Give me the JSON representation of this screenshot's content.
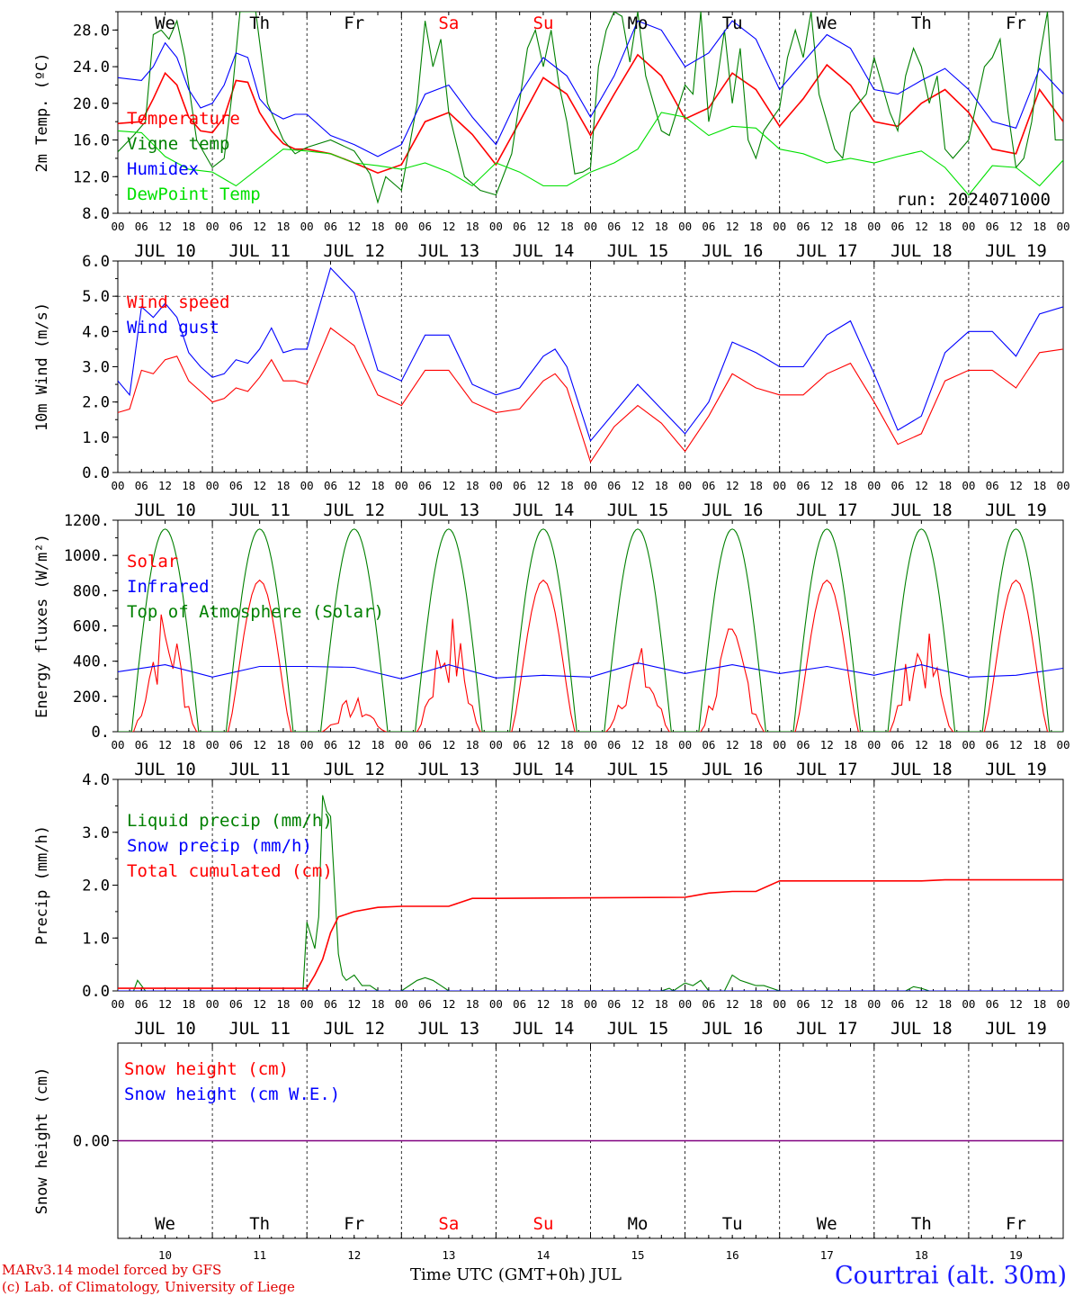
{
  "run_label": "run: 2024071000",
  "credits": [
    "MARv3.14 model forced by GFS",
    "(c) Lab. of Climatology, University of Liege"
  ],
  "station_label": "Courtrai (alt. 30m)",
  "x_axis_title": "Time UTC (GMT+0h) JUL",
  "hour_ticks": [
    "00",
    "06",
    "12",
    "18"
  ],
  "end_tick": "00",
  "date_labels": [
    "JUL 10",
    "JUL 11",
    "JUL 12",
    "JUL 13",
    "JUL 14",
    "JUL 15",
    "JUL 16",
    "JUL 17",
    "JUL 18",
    "JUL 19"
  ],
  "weekdays": [
    "We",
    "Th",
    "Fr",
    "Sa",
    "Su",
    "Mo",
    "Tu",
    "We",
    "Th",
    "Fr"
  ],
  "weekend_days": [
    3,
    4
  ],
  "day_numbers": [
    "10",
    "11",
    "12",
    "13",
    "14",
    "15",
    "16",
    "17",
    "18",
    "19"
  ],
  "colors": {
    "red": "#ff0000",
    "green": "#008000",
    "blue": "#0000ff",
    "lime": "#00e000",
    "purple": "#800080",
    "label": "#1a1aff"
  },
  "chart_data": [
    {
      "type": "line",
      "ylabel": "2m Temp. (ºC)",
      "ylim": [
        8,
        30
      ],
      "yticks": [
        "8.0",
        "12.0",
        "16.0",
        "20.0",
        "24.0",
        "28.0"
      ],
      "x_unit": "hours since JUL 10 00 UTC",
      "series": [
        {
          "name": "Temperature",
          "color": "#ff0000",
          "x": [
            0,
            6,
            9,
            12,
            15,
            18,
            21,
            24,
            27,
            30,
            33,
            36,
            39,
            42,
            45,
            48,
            54,
            60,
            66,
            72,
            78,
            84,
            90,
            96,
            102,
            108,
            114,
            120,
            126,
            132,
            138,
            144,
            150,
            156,
            162,
            168,
            174,
            180,
            186,
            192,
            198,
            204,
            210,
            216,
            222,
            228,
            234,
            240
          ],
          "y": [
            17.8,
            18,
            20.5,
            23.3,
            22,
            18.5,
            17,
            16.8,
            18.5,
            22.5,
            22.3,
            19,
            17,
            15.6,
            15,
            15,
            14.5,
            13.5,
            12.4,
            13.3,
            18,
            19,
            16.6,
            13.3,
            18,
            22.8,
            21,
            16.5,
            21,
            25.3,
            23,
            18.3,
            19.5,
            23.3,
            21.5,
            17.5,
            20.5,
            24.2,
            22,
            18,
            17.5,
            20,
            21.5,
            19,
            15,
            14.5,
            21.5,
            18
          ]
        },
        {
          "name": "Vigne temp",
          "color": "#008000",
          "x": [
            0,
            4,
            7,
            9,
            11,
            13,
            15,
            17,
            20,
            24,
            27,
            29,
            31,
            33,
            35,
            38,
            42,
            45,
            48,
            54,
            60,
            64,
            66,
            68,
            72,
            76,
            78,
            80,
            82,
            84,
            88,
            92,
            96,
            100,
            104,
            106,
            108,
            110,
            112,
            114,
            116,
            118,
            120,
            122,
            124,
            126,
            128,
            130,
            132,
            134,
            136,
            138,
            140,
            144,
            146,
            148,
            150,
            152,
            154,
            156,
            158,
            160,
            162,
            164,
            168,
            170,
            172,
            174,
            176,
            178,
            180,
            182,
            184,
            186,
            190,
            192,
            196,
            198,
            200,
            202,
            204,
            206,
            208,
            210,
            212,
            216,
            218,
            220,
            222,
            224,
            226,
            228,
            230,
            232,
            234,
            236,
            238,
            240
          ],
          "y": [
            14.7,
            16.5,
            18,
            27.5,
            28,
            27,
            29,
            25,
            16,
            13,
            14,
            21,
            30,
            30,
            30,
            20,
            16,
            14.5,
            15.2,
            16,
            14.8,
            12.3,
            9.2,
            12,
            10.5,
            20,
            29,
            24,
            27,
            19,
            12,
            10.5,
            10,
            14.5,
            26,
            28,
            24,
            28,
            22,
            18,
            12.3,
            12.5,
            13,
            24,
            28,
            30,
            29.5,
            24.5,
            30,
            23,
            20,
            17,
            16.5,
            22,
            21,
            30,
            18,
            22,
            28,
            20,
            26,
            16,
            14,
            17,
            19.5,
            25,
            28,
            25,
            30,
            21,
            18,
            15,
            14,
            19,
            21,
            25,
            19,
            17,
            23,
            26,
            24,
            20,
            23,
            15,
            14,
            16,
            20,
            24,
            25,
            27,
            19,
            13,
            14,
            18,
            25,
            30,
            16,
            16
          ]
        },
        {
          "name": "Humidex",
          "color": "#0000ff",
          "x": [
            0,
            6,
            9,
            12,
            15,
            18,
            21,
            24,
            27,
            30,
            33,
            36,
            39,
            42,
            45,
            48,
            54,
            60,
            66,
            72,
            78,
            84,
            90,
            96,
            102,
            108,
            114,
            120,
            126,
            132,
            138,
            144,
            150,
            156,
            162,
            168,
            174,
            180,
            186,
            192,
            198,
            204,
            210,
            216,
            222,
            228,
            234,
            240
          ],
          "y": [
            22.8,
            22.5,
            24,
            26.6,
            25,
            21.5,
            19.5,
            20,
            22,
            25.5,
            25,
            20.5,
            19,
            18.3,
            18.8,
            18.8,
            16.5,
            15.5,
            14.2,
            15.5,
            21,
            22,
            18.5,
            15.5,
            21,
            25,
            23,
            18.5,
            23,
            29,
            28,
            24,
            25.5,
            29,
            27,
            21.5,
            24.5,
            27.5,
            26,
            21.5,
            21,
            22.5,
            23.8,
            21.5,
            18,
            17.3,
            23.8,
            21
          ]
        },
        {
          "name": "DewPoint Temp",
          "color": "#00e000",
          "x": [
            0,
            6,
            12,
            18,
            24,
            30,
            36,
            42,
            48,
            54,
            60,
            66,
            72,
            78,
            84,
            90,
            96,
            102,
            108,
            114,
            120,
            126,
            132,
            138,
            144,
            150,
            156,
            162,
            168,
            174,
            180,
            186,
            192,
            198,
            204,
            210,
            216,
            222,
            228,
            234,
            240
          ],
          "y": [
            17,
            16.8,
            14.2,
            12.8,
            12.5,
            11,
            13,
            15,
            14.8,
            14.5,
            13.5,
            13.2,
            12.8,
            13.5,
            12.5,
            11,
            13.5,
            12.5,
            11,
            11,
            12.5,
            13.5,
            15,
            19,
            18.5,
            16.5,
            17.5,
            17.3,
            15,
            14.5,
            13.5,
            14,
            13.5,
            14.2,
            14.8,
            13,
            10,
            13.2,
            13,
            11,
            13.8
          ]
        }
      ]
    },
    {
      "type": "line",
      "ylabel": "10m Wind (m/s)",
      "ylim": [
        0,
        6
      ],
      "yticks": [
        "0.0",
        "1.0",
        "2.0",
        "3.0",
        "4.0",
        "5.0",
        "6.0"
      ],
      "ref_line": 5,
      "series": [
        {
          "name": "Wind speed",
          "color": "#ff0000",
          "x": [
            0,
            3,
            6,
            9,
            12,
            15,
            18,
            21,
            24,
            27,
            30,
            33,
            36,
            39,
            42,
            45,
            48,
            54,
            60,
            66,
            72,
            78,
            84,
            90,
            96,
            102,
            108,
            111,
            114,
            120,
            126,
            132,
            138,
            144,
            150,
            156,
            162,
            168,
            174,
            180,
            186,
            192,
            198,
            204,
            210,
            216,
            222,
            228,
            234,
            240
          ],
          "y": [
            1.7,
            1.8,
            2.9,
            2.8,
            3.2,
            3.3,
            2.6,
            2.3,
            2,
            2.1,
            2.4,
            2.3,
            2.7,
            3.2,
            2.6,
            2.6,
            2.5,
            4.1,
            3.6,
            2.2,
            1.9,
            2.9,
            2.9,
            2,
            1.7,
            1.8,
            2.6,
            2.8,
            2.4,
            0.3,
            1.3,
            1.9,
            1.4,
            0.6,
            1.6,
            2.8,
            2.4,
            2.2,
            2.2,
            2.8,
            3.1,
            2,
            0.8,
            1.1,
            2.6,
            2.9,
            2.9,
            2.4,
            3.4,
            3.5
          ]
        },
        {
          "name": "Wind gust",
          "color": "#0000ff",
          "x": [
            0,
            3,
            6,
            9,
            12,
            15,
            18,
            21,
            24,
            27,
            30,
            33,
            36,
            39,
            42,
            45,
            48,
            54,
            60,
            66,
            72,
            78,
            84,
            90,
            96,
            102,
            108,
            111,
            114,
            120,
            126,
            132,
            138,
            144,
            150,
            156,
            162,
            168,
            174,
            180,
            186,
            192,
            198,
            204,
            210,
            216,
            222,
            228,
            234,
            240
          ],
          "y": [
            2.6,
            2.2,
            4.7,
            4.4,
            4.8,
            4.4,
            3.4,
            3,
            2.7,
            2.8,
            3.2,
            3.1,
            3.5,
            4.1,
            3.4,
            3.5,
            3.5,
            5.8,
            5.1,
            2.9,
            2.6,
            3.9,
            3.9,
            2.5,
            2.2,
            2.4,
            3.3,
            3.5,
            3,
            0.9,
            1.7,
            2.5,
            1.8,
            1.1,
            2,
            3.7,
            3.4,
            3,
            3,
            3.9,
            4.3,
            2.8,
            1.2,
            1.6,
            3.4,
            4,
            4,
            3.3,
            4.5,
            4.7
          ]
        }
      ]
    },
    {
      "type": "line",
      "ylabel": "Energy fluxes (W/m²)",
      "ylim": [
        0,
        1200
      ],
      "yticks": [
        "0.",
        "200.",
        "400.",
        "600.",
        "800.",
        "1000.",
        "1200."
      ],
      "series": [
        {
          "name": "Solar",
          "color": "#ff0000",
          "peaks": [
            740,
            860,
            200,
            690,
            860,
            500,
            610,
            860,
            620,
            860
          ]
        },
        {
          "name": "Infrared",
          "color": "#0000ff",
          "x": [
            0,
            12,
            24,
            36,
            48,
            60,
            72,
            84,
            96,
            108,
            120,
            132,
            144,
            156,
            168,
            180,
            192,
            204,
            216,
            228,
            240
          ],
          "y": [
            340,
            380,
            310,
            370,
            370,
            365,
            300,
            380,
            305,
            320,
            310,
            390,
            330,
            380,
            330,
            370,
            320,
            380,
            310,
            320,
            360
          ]
        },
        {
          "name": "Top of Atmosphere (Solar)",
          "color": "#008000",
          "peak": 1150
        }
      ]
    },
    {
      "type": "line",
      "ylabel": "Precip (mm/h)",
      "ylim": [
        0,
        4
      ],
      "yticks": [
        "0.0",
        "1.0",
        "2.0",
        "3.0",
        "4.0"
      ],
      "series": [
        {
          "name": "Liquid precip (mm/h)",
          "color": "#008000",
          "x": [
            0,
            4,
            5,
            7,
            24,
            47,
            48,
            50,
            51,
            52,
            53,
            54,
            55,
            56,
            57,
            58,
            60,
            62,
            64,
            66,
            68,
            72,
            76,
            78,
            80,
            82,
            84,
            96,
            138,
            140,
            141,
            144,
            146,
            148,
            150,
            152,
            154,
            156,
            158,
            160,
            162,
            164,
            168,
            200,
            202,
            204,
            206,
            240
          ],
          "y": [
            0,
            0,
            0.2,
            0,
            0,
            0,
            1.3,
            0.8,
            1.4,
            3.7,
            3.4,
            3.3,
            2,
            0.7,
            0.3,
            0.2,
            0.3,
            0.1,
            0.1,
            0,
            0,
            0,
            0.2,
            0.25,
            0.2,
            0.1,
            0,
            0,
            0,
            0.05,
            0,
            0.15,
            0.1,
            0.2,
            0,
            0,
            0,
            0.3,
            0.2,
            0.15,
            0.1,
            0.1,
            0,
            0,
            0.08,
            0.05,
            0,
            0
          ]
        },
        {
          "name": "Snow precip (mm/h)",
          "color": "#0000ff",
          "x": [
            0,
            240
          ],
          "y": [
            0,
            0
          ]
        },
        {
          "name": "Total cumulated (cm)",
          "color": "#ff0000",
          "x": [
            0,
            48,
            50,
            52,
            54,
            56,
            60,
            66,
            72,
            84,
            90,
            96,
            144,
            150,
            156,
            162,
            168,
            180,
            192,
            204,
            210,
            240
          ],
          "y": [
            0.05,
            0.05,
            0.3,
            0.6,
            1.1,
            1.4,
            1.5,
            1.58,
            1.6,
            1.6,
            1.75,
            1.75,
            1.77,
            1.85,
            1.88,
            1.88,
            2.08,
            2.08,
            2.08,
            2.08,
            2.1,
            2.1
          ]
        }
      ]
    },
    {
      "type": "line",
      "ylabel": "Snow height (cm)",
      "ylim": [
        -0.01,
        0.01
      ],
      "yticks": [
        "0.00"
      ],
      "series": [
        {
          "name": "Snow height (cm)",
          "color": "#ff0000",
          "x": [
            0,
            240
          ],
          "y": [
            0,
            0
          ]
        },
        {
          "name": "Snow height (cm W.E.)",
          "color": "#0000ff",
          "x": [
            0,
            240
          ],
          "y": [
            0,
            0
          ]
        }
      ]
    }
  ]
}
